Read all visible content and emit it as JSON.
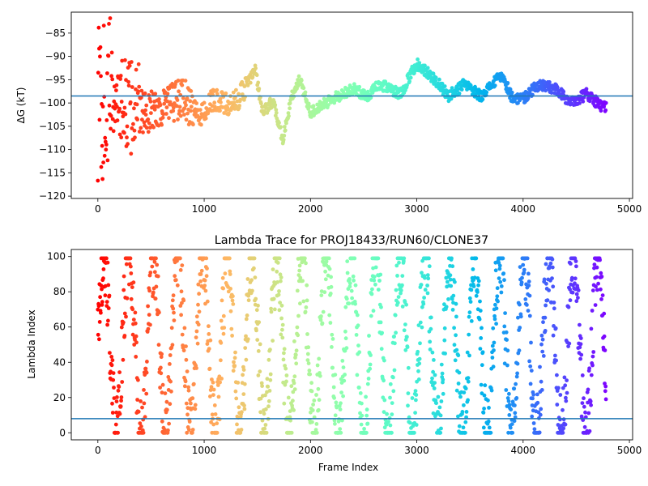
{
  "chart_data": [
    {
      "type": "scatter",
      "title": "",
      "xlabel": "",
      "ylabel": "ΔG (kT)",
      "xlim": [
        -250,
        5030
      ],
      "ylim": [
        -120.5,
        -80.5
      ],
      "xticks": [
        0,
        1000,
        2000,
        3000,
        4000,
        5000
      ],
      "yticks": [
        -120,
        -115,
        -110,
        -105,
        -100,
        -95,
        -90,
        -85
      ],
      "colormap": "rainbow (red → violet, by frame index)",
      "reference_line": {
        "y": -98.5,
        "color": "#1f77b4"
      },
      "trend_points": [
        {
          "x": 40,
          "y": -100
        },
        {
          "x": 150,
          "y": -98
        },
        {
          "x": 300,
          "y": -101
        },
        {
          "x": 450,
          "y": -102
        },
        {
          "x": 600,
          "y": -101
        },
        {
          "x": 800,
          "y": -99
        },
        {
          "x": 950,
          "y": -103
        },
        {
          "x": 1100,
          "y": -99
        },
        {
          "x": 1250,
          "y": -101
        },
        {
          "x": 1350,
          "y": -98
        },
        {
          "x": 1480,
          "y": -93
        },
        {
          "x": 1550,
          "y": -102
        },
        {
          "x": 1650,
          "y": -99.5
        },
        {
          "x": 1740,
          "y": -108
        },
        {
          "x": 1820,
          "y": -99
        },
        {
          "x": 1900,
          "y": -95
        },
        {
          "x": 2000,
          "y": -102
        },
        {
          "x": 2150,
          "y": -100
        },
        {
          "x": 2300,
          "y": -98
        },
        {
          "x": 2400,
          "y": -97
        },
        {
          "x": 2540,
          "y": -98.5
        },
        {
          "x": 2650,
          "y": -96
        },
        {
          "x": 2850,
          "y": -98
        },
        {
          "x": 3000,
          "y": -91.5
        },
        {
          "x": 3150,
          "y": -94.5
        },
        {
          "x": 3300,
          "y": -98.5
        },
        {
          "x": 3450,
          "y": -96
        },
        {
          "x": 3600,
          "y": -98.5
        },
        {
          "x": 3800,
          "y": -94
        },
        {
          "x": 3900,
          "y": -99
        },
        {
          "x": 4000,
          "y": -99
        },
        {
          "x": 4150,
          "y": -96
        },
        {
          "x": 4300,
          "y": -97
        },
        {
          "x": 4450,
          "y": -100
        },
        {
          "x": 4600,
          "y": -98
        },
        {
          "x": 4750,
          "y": -101
        }
      ]
    },
    {
      "type": "scatter",
      "title": "Lambda Trace for PROJ18433/RUN60/CLONE37",
      "xlabel": "Frame Index",
      "ylabel": "Lambda Index",
      "xlim": [
        -250,
        5030
      ],
      "ylim": [
        -4,
        104
      ],
      "xticks": [
        0,
        1000,
        2000,
        3000,
        4000,
        5000
      ],
      "yticks": [
        0,
        20,
        40,
        60,
        80,
        100
      ],
      "colormap": "rainbow (red → violet, by frame index)",
      "reference_line": {
        "y": 8,
        "color": "#1f77b4"
      },
      "frame_range": [
        0,
        4780
      ],
      "value_range": [
        0,
        99
      ]
    }
  ]
}
